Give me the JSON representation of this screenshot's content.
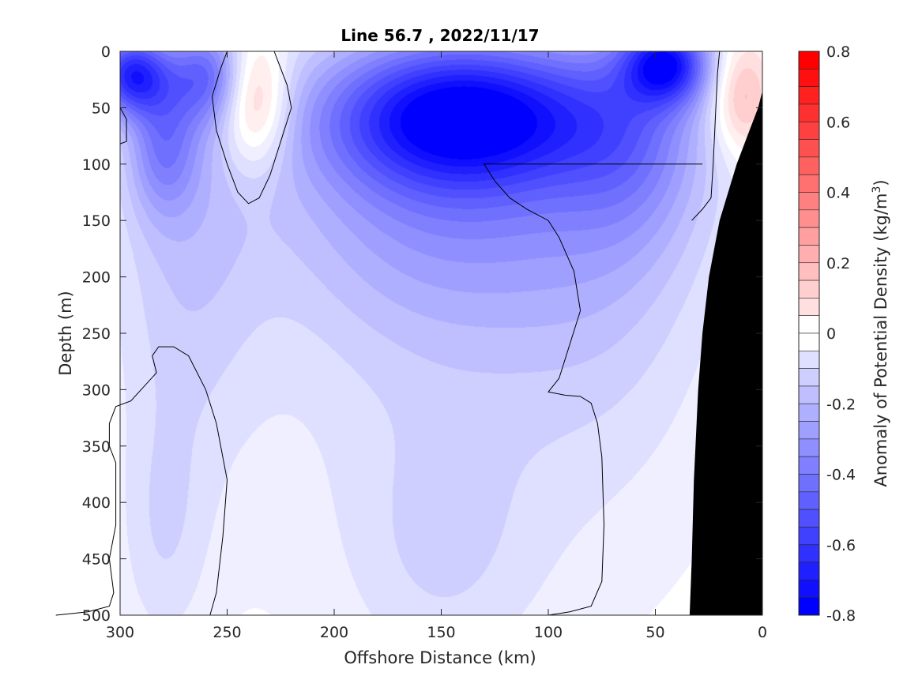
{
  "chart_data": {
    "type": "heatmap",
    "title": "Line 56.7 , 2022/11/17",
    "xlabel": "Offshore Distance (km)",
    "ylabel": "Depth (m)",
    "xlim": [
      300,
      0
    ],
    "ylim": [
      0,
      500
    ],
    "x_ticks": [
      "300",
      "250",
      "200",
      "150",
      "100",
      "50",
      "0"
    ],
    "y_ticks": [
      "0",
      "50",
      "100",
      "150",
      "200",
      "250",
      "300",
      "350",
      "400",
      "450",
      "500"
    ],
    "colorbar": {
      "label": "Anomaly of Potential Density (kg/m",
      "label_superscript": "3",
      "label_suffix": ")",
      "range": [
        -0.8,
        0.8
      ],
      "step": 0.05,
      "ticks": [
        "0.8",
        "0.6",
        "0.4",
        "0.2",
        "0",
        "-0.2",
        "-0.4",
        "-0.6",
        "-0.8"
      ]
    },
    "colors": {
      "negative_max": "#0000ff",
      "positive_max": "#ff0000",
      "neutral": "#ffffff",
      "bathymetry": "#000000"
    },
    "features": [
      {
        "label": "surface-low",
        "x": 295,
        "y": 20,
        "value": -0.6,
        "sx": 12,
        "sy": 25
      },
      {
        "label": "west-low",
        "x": 280,
        "y": 80,
        "value": -0.3,
        "sx": 12,
        "sy": 45
      },
      {
        "label": "west-column",
        "x": 270,
        "y": 170,
        "value": -0.15,
        "sx": 25,
        "sy": 140
      },
      {
        "label": "deep-west",
        "x": 280,
        "y": 430,
        "value": -0.1,
        "sx": 15,
        "sy": 80
      },
      {
        "label": "surface-low-2",
        "x": 260,
        "y": 20,
        "value": -0.35,
        "sx": 12,
        "sy": 30
      },
      {
        "label": "warm-core-west",
        "x": 237,
        "y": 45,
        "value": 0.3,
        "sx": 11,
        "sy": 40
      },
      {
        "label": "central-core",
        "x": 140,
        "y": 55,
        "value": -0.65,
        "sx": 45,
        "sy": 45
      },
      {
        "label": "central-mid",
        "x": 145,
        "y": 120,
        "value": -0.3,
        "sx": 60,
        "sy": 90
      },
      {
        "label": "central-deep",
        "x": 140,
        "y": 300,
        "value": -0.1,
        "sx": 70,
        "sy": 160
      },
      {
        "label": "central-bottom",
        "x": 150,
        "y": 450,
        "value": -0.08,
        "sx": 30,
        "sy": 80
      },
      {
        "label": "east-surface",
        "x": 45,
        "y": 10,
        "value": -0.6,
        "sx": 14,
        "sy": 25
      },
      {
        "label": "east-mid",
        "x": 60,
        "y": 70,
        "value": -0.25,
        "sx": 25,
        "sy": 70
      },
      {
        "label": "east-deep",
        "x": 70,
        "y": 200,
        "value": -0.08,
        "sx": 35,
        "sy": 120
      },
      {
        "label": "warm-core-east",
        "x": 10,
        "y": 40,
        "value": 0.25,
        "sx": 10,
        "sy": 35
      }
    ],
    "zero_contours": [
      {
        "name": "warm-core-west",
        "points": [
          [
            228,
            0
          ],
          [
            226,
            10
          ],
          [
            222,
            30
          ],
          [
            220,
            50
          ],
          [
            225,
            80
          ],
          [
            230,
            110
          ],
          [
            235,
            130
          ],
          [
            240,
            135
          ],
          [
            245,
            125
          ],
          [
            250,
            100
          ],
          [
            255,
            70
          ],
          [
            257,
            40
          ],
          [
            253,
            15
          ],
          [
            250,
            0
          ]
        ]
      },
      {
        "name": "west-deep-lens",
        "points": [
          [
            258,
            500
          ],
          [
            255,
            480
          ],
          [
            252,
            430
          ],
          [
            250,
            380
          ],
          [
            255,
            330
          ],
          [
            260,
            300
          ],
          [
            268,
            270
          ],
          [
            275,
            262
          ],
          [
            282,
            262
          ],
          [
            285,
            270
          ],
          [
            283,
            285
          ],
          [
            295,
            310
          ],
          [
            302,
            315
          ],
          [
            305,
            330
          ],
          [
            305,
            350
          ],
          [
            302,
            365
          ],
          [
            302,
            420
          ],
          [
            305,
            450
          ],
          [
            303,
            480
          ],
          [
            305,
            492
          ],
          [
            315,
            497
          ],
          [
            330,
            500
          ]
        ]
      },
      {
        "name": "central-deep-lens",
        "points": [
          [
            100,
            500
          ],
          [
            90,
            497
          ],
          [
            80,
            492
          ],
          [
            75,
            470
          ],
          [
            74,
            420
          ],
          [
            75,
            360
          ],
          [
            77,
            330
          ],
          [
            80,
            312
          ],
          [
            85,
            306
          ],
          [
            92,
            305
          ],
          [
            100,
            302
          ],
          [
            95,
            290
          ],
          [
            90,
            260
          ],
          [
            85,
            230
          ],
          [
            88,
            195
          ],
          [
            95,
            165
          ],
          [
            100,
            150
          ],
          [
            110,
            140
          ],
          [
            118,
            130
          ],
          [
            125,
            115
          ],
          [
            130,
            100
          ],
          [
            28,
            100
          ]
        ]
      },
      {
        "name": "warm-core-east",
        "points": [
          [
            20,
            0
          ],
          [
            21,
            20
          ],
          [
            22,
            60
          ],
          [
            23,
            100
          ],
          [
            24,
            130
          ],
          [
            28,
            140
          ],
          [
            33,
            150
          ]
        ]
      },
      {
        "name": "far-west-edge",
        "points": [
          [
            300,
            50
          ],
          [
            297,
            60
          ],
          [
            297,
            80
          ],
          [
            300,
            82
          ]
        ]
      }
    ],
    "bathymetry": [
      [
        34,
        500
      ],
      [
        33,
        450
      ],
      [
        32,
        380
      ],
      [
        30,
        300
      ],
      [
        28,
        250
      ],
      [
        25,
        200
      ],
      [
        20,
        150
      ],
      [
        12,
        100
      ],
      [
        6,
        70
      ],
      [
        2,
        50
      ],
      [
        0,
        35
      ],
      [
        0,
        500
      ]
    ]
  }
}
